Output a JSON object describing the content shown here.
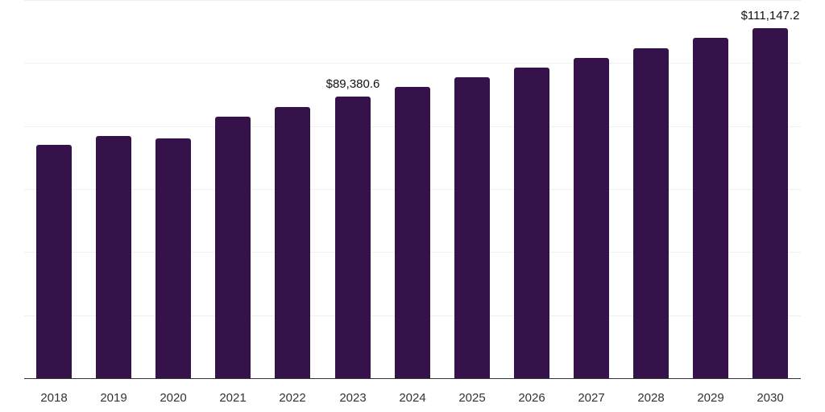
{
  "chart_data": {
    "type": "bar",
    "title": "",
    "xlabel": "",
    "ylabel": "",
    "categories": [
      "2018",
      "2019",
      "2020",
      "2021",
      "2022",
      "2023",
      "2024",
      "2025",
      "2026",
      "2027",
      "2028",
      "2029",
      "2030"
    ],
    "values": [
      74000,
      76800,
      76100,
      83000,
      86000,
      89380.6,
      92500,
      95600,
      98600,
      101700,
      104800,
      107900,
      111147.2
    ],
    "data_labels": [
      {
        "index": 5,
        "text": "$89,380.6"
      },
      {
        "index": 12,
        "text": "$111,147.2"
      }
    ],
    "ylim": [
      0,
      120000
    ],
    "grid": true,
    "gridline_values": [
      20000,
      40000,
      60000,
      80000,
      100000,
      120000
    ],
    "legend": null,
    "bar_color": "#36124a"
  }
}
